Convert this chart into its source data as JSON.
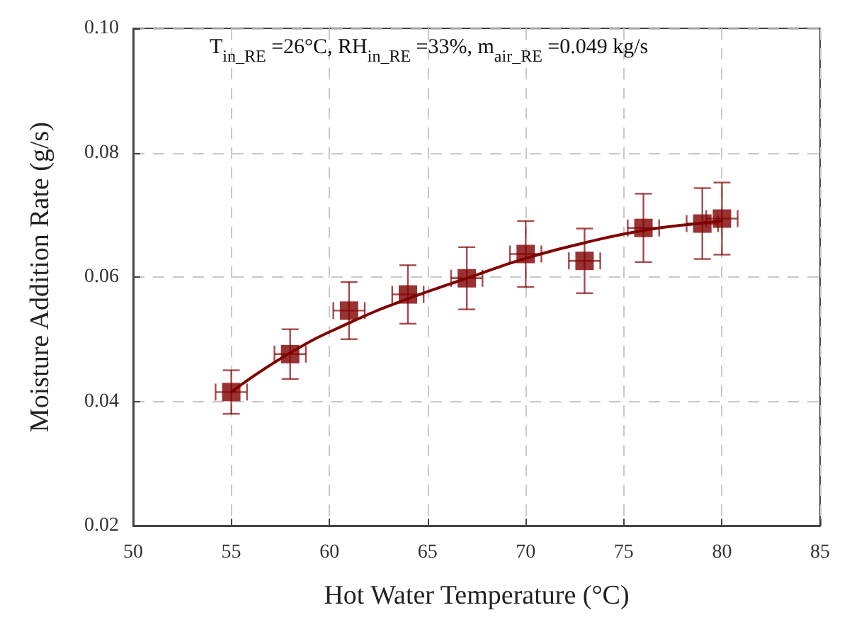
{
  "chart_data": {
    "type": "scatter",
    "xlabel": "Hot Water Temperature (°C)",
    "ylabel": "Moisture Addition Rate (g/s)",
    "annotations": [
      "T$_{in_RE}$ =26°C, RH$_{in_RE}$ =33%, m$_{air_RE}$ =0.049 kg/s"
    ],
    "xlim": [
      50,
      85
    ],
    "xticks": [
      50,
      55,
      60,
      65,
      70,
      75,
      80,
      85
    ],
    "ylim": [
      0.02,
      0.1
    ],
    "yticks": [
      {
        "value": 0.02,
        "label": "0.02"
      },
      {
        "value": 0.04,
        "label": "0.04"
      },
      {
        "value": 0.06,
        "label": "0.06"
      },
      {
        "value": 0.08,
        "label": "0.08"
      },
      {
        "value": 0.1,
        "label": "0.10"
      }
    ],
    "grid": true,
    "series": [
      {
        "color": "#800000",
        "marker": "square",
        "x": [
          55,
          58,
          61,
          64,
          67,
          70,
          73,
          76,
          79,
          80
        ],
        "values": [
          0.0415,
          0.0476,
          0.0546,
          0.0572,
          0.0598,
          0.0637,
          0.0626,
          0.0679,
          0.0686,
          0.0694
        ],
        "errors": [
          0.0035,
          0.004,
          0.0046,
          0.0047,
          0.005,
          0.0053,
          0.0052,
          0.0055,
          0.0057,
          0.0058
        ],
        "xerrors": [
          0.8,
          0.8,
          0.8,
          0.8,
          0.8,
          0.8,
          0.8,
          0.8,
          0.8,
          0.8
        ]
      },
      {
        "type": "line",
        "color": "#800000",
        "marker": "none",
        "line_style": "solid",
        "x": [
          55,
          58,
          61,
          64,
          67,
          70,
          73,
          76,
          79,
          80
        ],
        "values": [
          0.0415,
          0.0478,
          0.0526,
          0.0565,
          0.0598,
          0.063,
          0.0655,
          0.0675,
          0.0687,
          0.069
        ]
      }
    ]
  }
}
